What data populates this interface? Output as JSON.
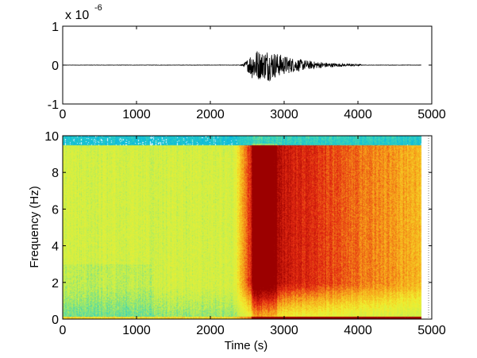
{
  "chart_data": [
    {
      "type": "line",
      "xlim": [
        0,
        5000
      ],
      "ylim": [
        -1,
        1
      ],
      "xticks": [
        "0",
        "1000",
        "2000",
        "3000",
        "4000",
        "5000"
      ],
      "yticks": [
        "-1",
        "0",
        "1"
      ],
      "y_multiplier": "x 10",
      "y_multiplier_exponent": "-6",
      "signal": {
        "event_onset": 2330,
        "peak_times": [
          2620,
          2780
        ],
        "peak_amplitude": 0.42,
        "coda_end": 4050,
        "baseline_noise": 0.004
      }
    },
    {
      "type": "heatmap",
      "xlabel": "Time (s)",
      "ylabel": "Frequency (Hz)",
      "xlim": [
        0,
        5000
      ],
      "ylim": [
        0,
        10
      ],
      "xticks": [
        "0",
        "1000",
        "2000",
        "3000",
        "4000",
        "5000"
      ],
      "yticks": [
        "0",
        "2",
        "4",
        "6",
        "8",
        "10"
      ],
      "time_extent": 4850,
      "event_onset": 2300,
      "peak_time": 2650,
      "colormap": [
        "#00b4e6",
        "#3fd6b4",
        "#c8ef4b",
        "#f2ee2e",
        "#f7a21a",
        "#e42a12",
        "#9c0000"
      ]
    }
  ]
}
